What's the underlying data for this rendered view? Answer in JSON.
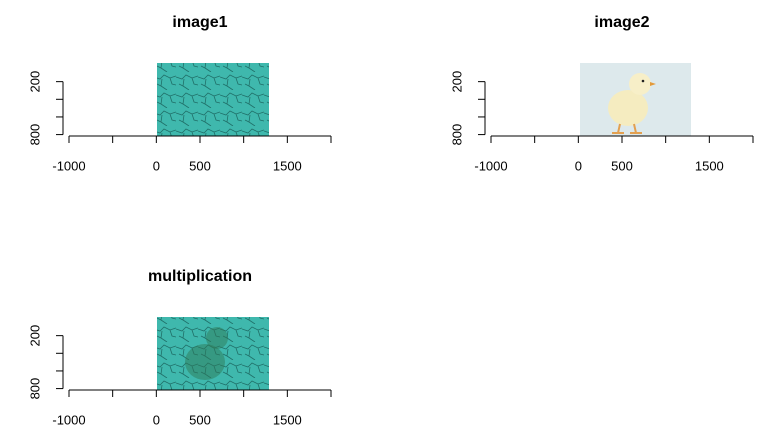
{
  "chart_data": [
    {
      "type": "image",
      "title": "image1",
      "xlim": [
        -1000,
        2000
      ],
      "xticks": [
        -1000,
        {
          "value": -500,
          "label": null
        },
        0,
        500,
        {
          "value": 1000,
          "label": null
        },
        1500,
        {
          "value": 2000,
          "label": null
        }
      ],
      "ylim": [
        850,
        0
      ],
      "yticks": [
        200,
        {
          "value": 400,
          "label": null
        },
        {
          "value": 600,
          "label": null
        },
        800
      ]
    },
    {
      "type": "image",
      "title": "image2",
      "xlim": [
        -1000,
        2000
      ],
      "xticks": [
        -1000,
        {
          "value": -500,
          "label": null
        },
        0,
        500,
        {
          "value": 1000,
          "label": null
        },
        1500,
        {
          "value": 2000,
          "label": null
        }
      ],
      "ylim": [
        850,
        0
      ],
      "yticks": [
        200,
        {
          "value": 400,
          "label": null
        },
        {
          "value": 600,
          "label": null
        },
        800
      ]
    },
    {
      "type": "image",
      "title": "multiplication",
      "xlim": [
        -1000,
        2000
      ],
      "xticks": [
        -1000,
        {
          "value": -500,
          "label": null
        },
        0,
        500,
        {
          "value": 1000,
          "label": null
        },
        1500,
        {
          "value": 2000,
          "label": null
        }
      ],
      "ylim": [
        850,
        0
      ],
      "yticks": [
        200,
        {
          "value": 400,
          "label": null
        },
        {
          "value": 600,
          "label": null
        },
        800
      ]
    }
  ]
}
